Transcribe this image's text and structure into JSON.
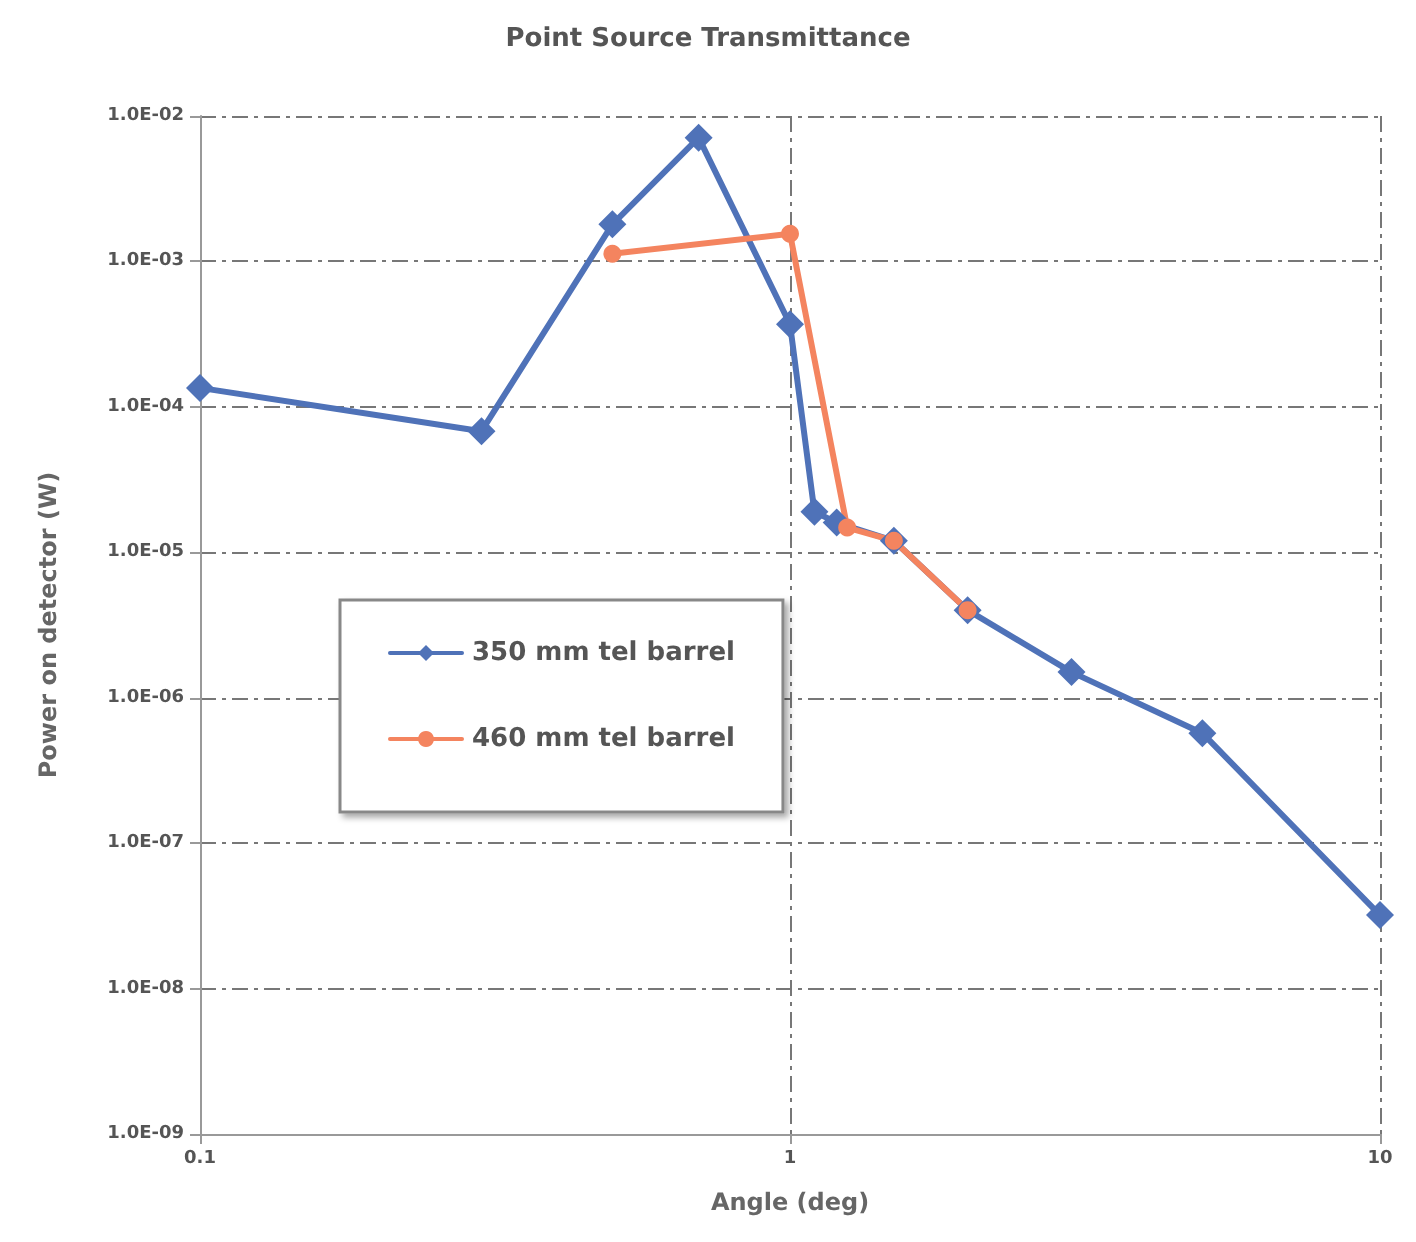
{
  "chart_data": {
    "type": "line",
    "title": "Point Source Transmittance",
    "xlabel": "Angle (deg)",
    "ylabel": "Power on detector (W)",
    "log": "xy",
    "grid": true,
    "legend": "left",
    "xlim": [
      0.1,
      10
    ],
    "xticks": [
      0.1,
      1,
      10
    ],
    "ylim": [
      1e-09,
      0.01
    ],
    "yticks": [
      {
        "value": 1e-09,
        "label": "1.0E-09"
      },
      {
        "value": 1e-08,
        "label": "1.0E-08"
      },
      {
        "value": 1e-07,
        "label": "1.0E-07"
      },
      {
        "value": 1e-06,
        "label": "1.0E-06"
      },
      {
        "value": 1e-05,
        "label": "1.0E-05"
      },
      {
        "value": 0.0001,
        "label": "1.0E-04"
      },
      {
        "value": 0.001,
        "label": "1.0E-03"
      },
      {
        "value": 0.01,
        "label": "1.0E-02"
      }
    ],
    "series": [
      {
        "name": "350 mm tel barrel",
        "color": "#4f72b8",
        "marker": "diamond",
        "x": [
          0.1,
          0.3,
          0.5,
          0.7,
          1,
          1.1,
          1.2,
          1.5,
          2,
          3,
          5,
          10
        ],
        "values": [
          0.000135,
          6.8e-05,
          0.0018,
          0.0071,
          0.00037,
          1.9e-05,
          1.6e-05,
          1.2e-05,
          4e-06,
          1.5e-06,
          5.7e-07,
          3.2e-08
        ]
      },
      {
        "name": "460 mm tel barrel",
        "color": "#f4845f",
        "marker": "circle",
        "x": [
          0.5,
          1,
          1.25,
          1.5,
          2
        ],
        "values": [
          0.00113,
          0.00155,
          1.48e-05,
          1.2e-05,
          4e-06
        ]
      }
    ]
  }
}
